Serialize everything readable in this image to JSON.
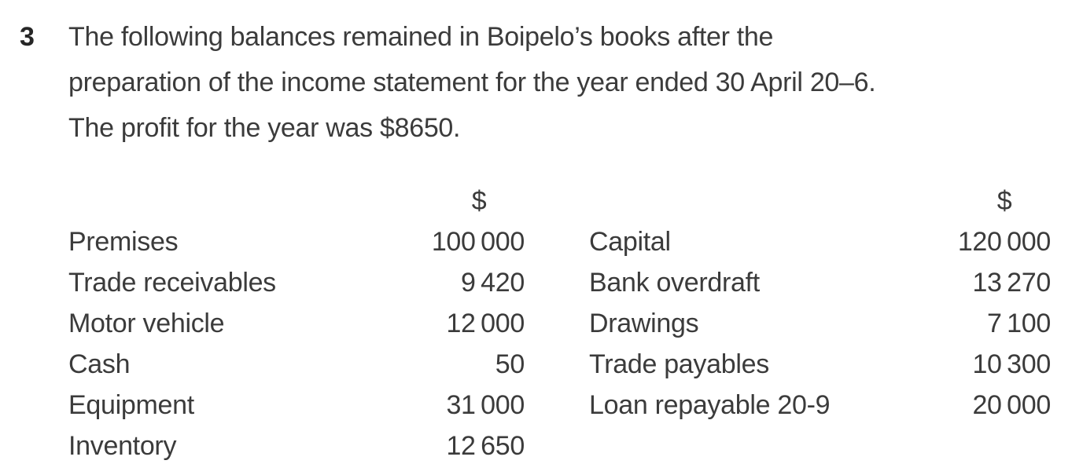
{
  "colors": {
    "background": "#ffffff",
    "text": "#3b3b3b",
    "question_number": "#262626"
  },
  "question": {
    "number": "3",
    "text_lines": [
      "The following balances remained in Boipelo’s books after the",
      "preparation of the income statement for the year ended 30 April 20–6.",
      "The profit for the year was $8650."
    ]
  },
  "balances_table": {
    "currency_header": "$",
    "left_column": [
      {
        "label": "Premises",
        "amount": "100 000"
      },
      {
        "label": "Trade receivables",
        "amount": "9 420"
      },
      {
        "label": "Motor vehicle",
        "amount": "12 000"
      },
      {
        "label": "Cash",
        "amount": "50"
      },
      {
        "label": "Equipment",
        "amount": "31 000"
      },
      {
        "label": "Inventory",
        "amount": "12 650"
      }
    ],
    "right_column": [
      {
        "label": "Capital",
        "amount": "120 000"
      },
      {
        "label": "Bank overdraft",
        "amount": "13 270"
      },
      {
        "label": "Drawings",
        "amount": "7 100"
      },
      {
        "label": "Trade payables",
        "amount": "10 300"
      },
      {
        "label": "Loan repayable 20-9",
        "amount": "20 000"
      },
      {
        "label": "",
        "amount": ""
      }
    ]
  }
}
